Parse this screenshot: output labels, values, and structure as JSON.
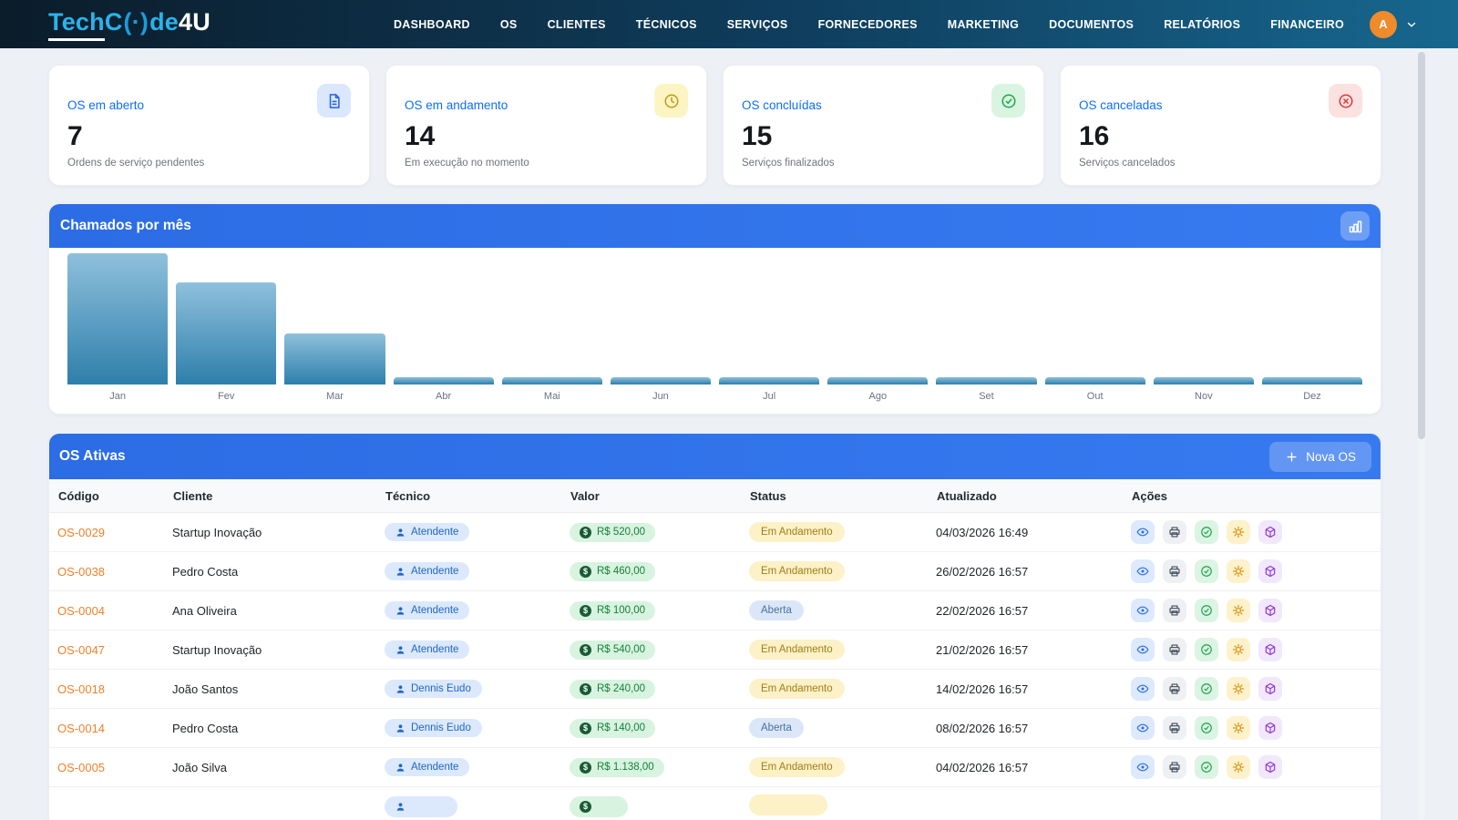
{
  "brand": {
    "part1": "Tech",
    "part2": "C",
    "o_glyph": "(·)",
    "part3": "de",
    "part4": "4U"
  },
  "nav": {
    "items": [
      "DASHBOARD",
      "OS",
      "CLIENTES",
      "TÉCNICOS",
      "SERVIÇOS",
      "FORNECEDORES",
      "MARKETING",
      "DOCUMENTOS",
      "RELATÓRIOS",
      "FINANCEIRO"
    ],
    "avatar_letter": "A"
  },
  "stat_cards": [
    {
      "title": "OS em aberto",
      "value": "7",
      "subtitle": "Ordens de serviço pendentes",
      "icon": "document-icon",
      "icon_bg": "#dbe7fd",
      "icon_color": "#2563eb"
    },
    {
      "title": "OS em andamento",
      "value": "14",
      "subtitle": "Em execução no momento",
      "icon": "clock-icon",
      "icon_bg": "#fdf4c4",
      "icon_color": "#c19a10"
    },
    {
      "title": "OS concluídas",
      "value": "15",
      "subtitle": "Serviços finalizados",
      "icon": "check-circle-icon",
      "icon_bg": "#d9f5e1",
      "icon_color": "#22a34d"
    },
    {
      "title": "OS canceladas",
      "value": "16",
      "subtitle": "Serviços cancelados",
      "icon": "x-circle-icon",
      "icon_bg": "#fce1e1",
      "icon_color": "#e23636"
    }
  ],
  "chart_data": {
    "type": "bar",
    "title": "Chamados por mês",
    "categories": [
      "Jan",
      "Fev",
      "Mar",
      "Abr",
      "Mai",
      "Jun",
      "Jul",
      "Ago",
      "Set",
      "Out",
      "Nov",
      "Dez"
    ],
    "values": [
      18,
      14,
      7,
      1,
      1,
      1,
      1,
      1,
      1,
      1,
      1,
      1
    ],
    "ylim": [
      0,
      18
    ],
    "xlabel": "",
    "ylabel": "",
    "legend": false,
    "grid": false,
    "header_icon": "bar-chart-icon",
    "bar_gradient": [
      "#8fc0dc",
      "#2e7fab"
    ]
  },
  "table": {
    "title": "OS Ativas",
    "new_os_label": "Nova OS",
    "new_os_icon": "plus-icon",
    "columns": [
      "Código",
      "Cliente",
      "Técnico",
      "Valor",
      "Status",
      "Atualizado",
      "Ações"
    ],
    "rows": [
      {
        "codigo": "OS-0029",
        "cliente": "Startup Inovação",
        "tecnico": "Atendente",
        "valor": "R$ 520,00",
        "status": "Em Andamento",
        "status_type": "andamento",
        "atualizado": "04/03/2026 16:49"
      },
      {
        "codigo": "OS-0038",
        "cliente": "Pedro Costa",
        "tecnico": "Atendente",
        "valor": "R$ 460,00",
        "status": "Em Andamento",
        "status_type": "andamento",
        "atualizado": "26/02/2026 16:57"
      },
      {
        "codigo": "OS-0004",
        "cliente": "Ana Oliveira",
        "tecnico": "Atendente",
        "valor": "R$ 100,00",
        "status": "Aberta",
        "status_type": "aberta",
        "atualizado": "22/02/2026 16:57"
      },
      {
        "codigo": "OS-0047",
        "cliente": "Startup Inovação",
        "tecnico": "Atendente",
        "valor": "R$ 540,00",
        "status": "Em Andamento",
        "status_type": "andamento",
        "atualizado": "21/02/2026 16:57"
      },
      {
        "codigo": "OS-0018",
        "cliente": "João Santos",
        "tecnico": "Dennis Eudo",
        "valor": "R$ 240,00",
        "status": "Em Andamento",
        "status_type": "andamento",
        "atualizado": "14/02/2026 16:57"
      },
      {
        "codigo": "OS-0014",
        "cliente": "Pedro Costa",
        "tecnico": "Dennis Eudo",
        "valor": "R$ 140,00",
        "status": "Aberta",
        "status_type": "aberta",
        "atualizado": "08/02/2026 16:57"
      },
      {
        "codigo": "OS-0005",
        "cliente": "João Silva",
        "tecnico": "Atendente",
        "valor": "R$ 1.138,00",
        "status": "Em Andamento",
        "status_type": "andamento",
        "atualizado": "04/02/2026 16:57"
      }
    ],
    "partial_row_visible": true,
    "tecnico_icon": "person-icon",
    "valor_icon": "coin-icon",
    "actions": [
      {
        "name": "view",
        "icon": "eye-icon"
      },
      {
        "name": "print",
        "icon": "printer-icon"
      },
      {
        "name": "complete",
        "icon": "check-circle-icon"
      },
      {
        "name": "settings",
        "icon": "gear-icon"
      },
      {
        "name": "package",
        "icon": "cube-icon"
      }
    ]
  },
  "colors": {
    "navbar_gradient": [
      "#0b1c2a",
      "#17678f"
    ],
    "panel_header_blue": "#2e71e8",
    "card_title_blue": "#0d6efd",
    "code_orange": "#f0812a",
    "avatar_orange": "#ef8b2a",
    "status_andamento": {
      "bg": "#fdf1c8",
      "text": "#a17d14"
    },
    "status_aberta": {
      "bg": "#dbe7f8",
      "text": "#49719f"
    },
    "tecnico_badge": {
      "bg": "#dce9fc",
      "text": "#2166c4"
    },
    "valor_badge": {
      "bg": "#d8f3e0",
      "text": "#17813b"
    }
  }
}
